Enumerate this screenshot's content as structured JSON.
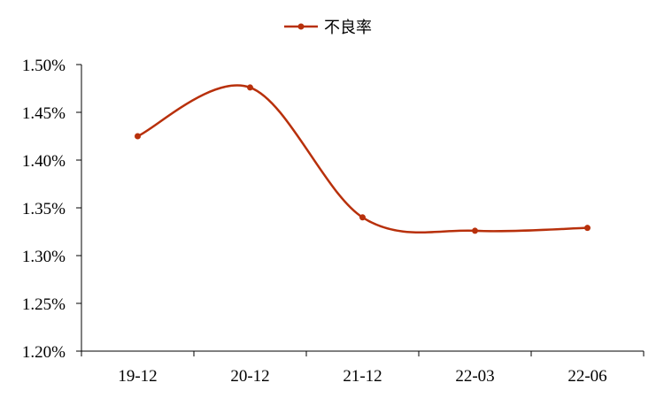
{
  "chart_data": {
    "type": "line",
    "categories": [
      "19-12",
      "20-12",
      "21-12",
      "22-03",
      "22-06"
    ],
    "series": [
      {
        "name": "不良率",
        "values": [
          1.425,
          1.476,
          1.34,
          1.326,
          1.329
        ],
        "color": "#B8300B"
      }
    ],
    "ylim": [
      1.2,
      1.5
    ],
    "yticks": [
      "1.20%",
      "1.25%",
      "1.30%",
      "1.35%",
      "1.40%",
      "1.45%",
      "1.50%"
    ],
    "smooth": true,
    "legend": "top-center",
    "grid": false
  }
}
